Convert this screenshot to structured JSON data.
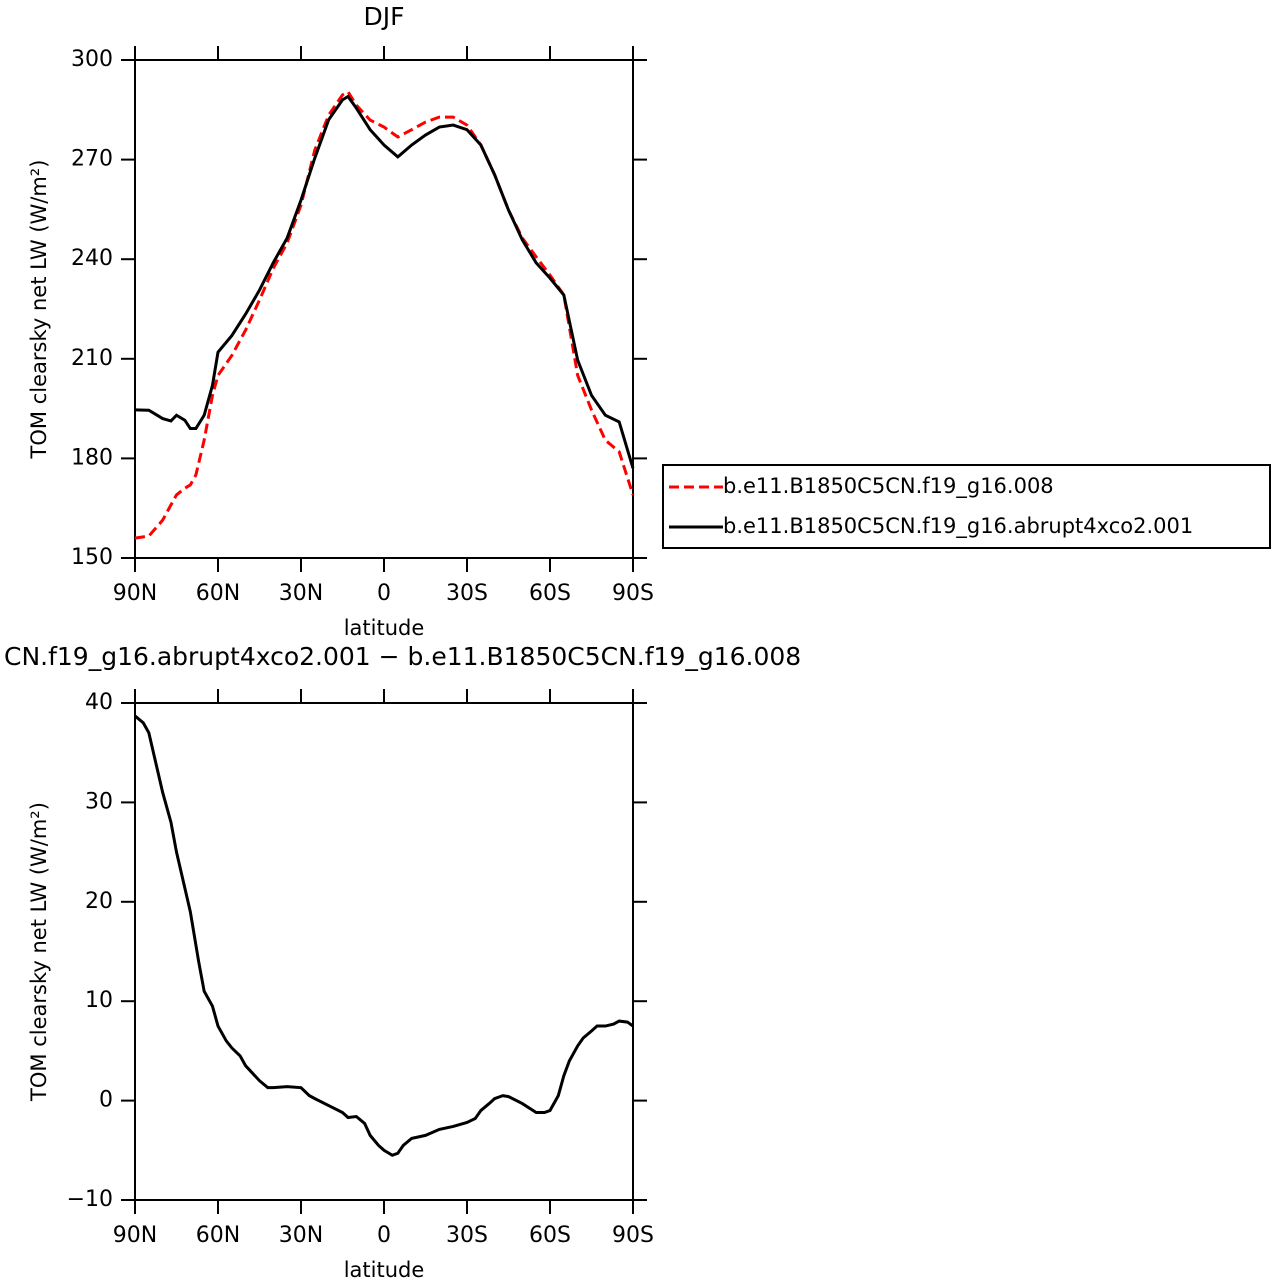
{
  "chart_data": [
    {
      "type": "line",
      "title": "DJF",
      "xlabel": "latitude",
      "ylabel": "TOM clearsky net LW (W/m²)",
      "x": [
        90,
        85,
        80,
        77,
        75,
        72,
        70,
        68,
        65,
        62,
        60,
        55,
        50,
        45,
        40,
        35,
        30,
        25,
        20,
        15,
        13,
        10,
        5,
        0,
        -5,
        -10,
        -15,
        -20,
        -25,
        -30,
        -35,
        -40,
        -45,
        -50,
        -55,
        -60,
        -65,
        -70,
        -75,
        -80,
        -85,
        -90
      ],
      "series": [
        {
          "name": "b.e11.B1850C5CN.f19_g16.008",
          "color": "#ff0000",
          "line_style": "dashed",
          "values": [
            156,
            156.6,
            161.4,
            166,
            169,
            171,
            172,
            175,
            185.5,
            199,
            205,
            211,
            218.7,
            227.7,
            237.3,
            244.9,
            256.3,
            272.9,
            283.4,
            289.5,
            290.4,
            286.4,
            281.9,
            279.8,
            276.8,
            279,
            281.3,
            282.8,
            282.8,
            280.4,
            274.4,
            265.4,
            254.8,
            246.4,
            240.7,
            235.2,
            229.2,
            205,
            194.6,
            185.5,
            182,
            169
          ]
        },
        {
          "name": "b.e11.B1850C5CN.f19_g16.abrupt4xco2.001",
          "color": "#000000",
          "line_style": "solid",
          "values": [
            194.6,
            194.5,
            192,
            191.3,
            193,
            191.5,
            189,
            189,
            193,
            202,
            212,
            217,
            223.5,
            230.7,
            239,
            246.4,
            257.8,
            270.5,
            282,
            288,
            289,
            285.5,
            279,
            274.4,
            270.8,
            274.4,
            277.4,
            279.8,
            280.4,
            279,
            274.4,
            265.4,
            254.8,
            245.8,
            238.9,
            234.3,
            229.2,
            209.6,
            199,
            193,
            191,
            177
          ]
        }
      ],
      "xlim": [
        90,
        -90
      ],
      "xticks": [
        {
          "value": 90,
          "label": "90N"
        },
        {
          "value": 60,
          "label": "60N"
        },
        {
          "value": 30,
          "label": "30N"
        },
        0,
        {
          "value": -30,
          "label": "30S"
        },
        {
          "value": -60,
          "label": "60S"
        },
        {
          "value": -90,
          "label": "90S"
        }
      ],
      "ylim": [
        150,
        300
      ],
      "yticks": [
        150,
        180,
        210,
        240,
        270,
        300
      ],
      "grid": false,
      "legend": "right"
    },
    {
      "type": "line",
      "title": "CN.f19_g16.abrupt4xco2.001 − b.e11.B1850C5CN.f19_g16.008",
      "xlabel": "latitude",
      "ylabel": "TOM clearsky net LW (W/m²)",
      "x": [
        90,
        87,
        85,
        80,
        77,
        75,
        70,
        67,
        65,
        62,
        60,
        57,
        55,
        52,
        50,
        45,
        42,
        40,
        35,
        30,
        27,
        25,
        20,
        15,
        13,
        10,
        7,
        5,
        2,
        0,
        -3,
        -5,
        -7,
        -10,
        -15,
        -20,
        -25,
        -30,
        -33,
        -35,
        -38,
        -40,
        -43,
        -45,
        -50,
        -55,
        -58,
        -60,
        -63,
        -65,
        -67,
        -70,
        -72,
        -75,
        -77,
        -80,
        -83,
        -85,
        -88,
        -90
      ],
      "series": [
        {
          "color": "#000000",
          "line_style": "solid",
          "values": [
            38.7,
            38,
            37,
            31,
            28,
            25,
            19,
            14,
            11,
            9.5,
            7.5,
            6,
            5.3,
            4.5,
            3.5,
            2,
            1.3,
            1.3,
            1.4,
            1.3,
            0.5,
            0.2,
            -0.5,
            -1.2,
            -1.7,
            -1.6,
            -2.3,
            -3.5,
            -4.5,
            -5,
            -5.5,
            -5.3,
            -4.5,
            -3.8,
            -3.5,
            -2.9,
            -2.6,
            -2.2,
            -1.8,
            -1,
            -0.3,
            0.2,
            0.5,
            0.4,
            -0.3,
            -1.2,
            -1.2,
            -1,
            0.5,
            2.5,
            4,
            5.5,
            6.3,
            7,
            7.5,
            7.5,
            7.7,
            8,
            7.9,
            7.5
          ]
        }
      ],
      "xlim": [
        90,
        -90
      ],
      "xticks": [
        {
          "value": 90,
          "label": "90N"
        },
        {
          "value": 60,
          "label": "60N"
        },
        {
          "value": 30,
          "label": "30N"
        },
        0,
        {
          "value": -30,
          "label": "30S"
        },
        {
          "value": -60,
          "label": "60S"
        },
        {
          "value": -90,
          "label": "90S"
        }
      ],
      "ylim": [
        -10,
        40
      ],
      "yticks": [
        {
          "value": -10,
          "label": "−10"
        },
        0,
        10,
        20,
        30,
        40
      ],
      "grid": false
    }
  ]
}
